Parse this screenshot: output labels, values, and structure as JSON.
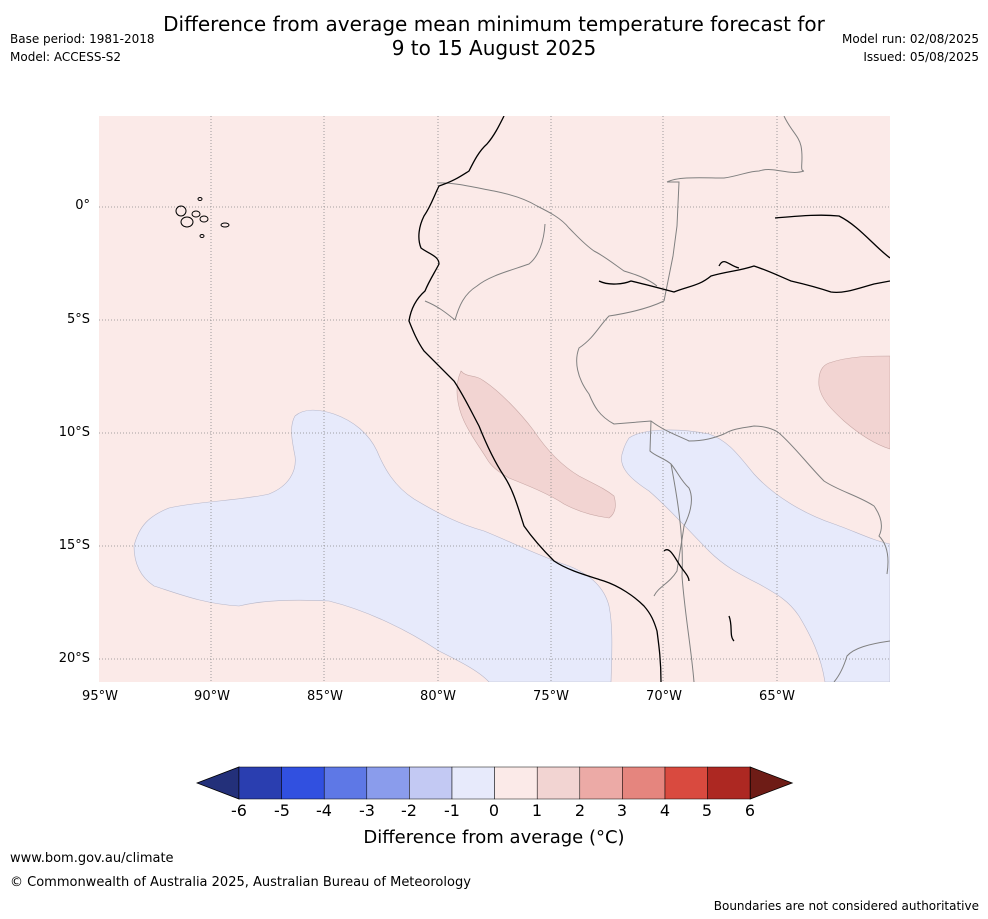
{
  "header": {
    "title_line1": "Difference from average mean minimum temperature forecast for",
    "title_line2": "9 to 15 August 2025",
    "base_period": "Base period: 1981-2018",
    "model": "Model: ACCESS-S2",
    "model_run": "Model run: 02/08/2025",
    "issued": "Issued: 05/08/2025"
  },
  "map": {
    "background_color": "#fbeae8",
    "lat_labels": [
      "0°",
      "5°S",
      "10°S",
      "15°S",
      "20°S"
    ],
    "lon_labels": [
      "95°W",
      "90°W",
      "85°W",
      "80°W",
      "75°W",
      "70°W",
      "65°W"
    ]
  },
  "colorbar": {
    "colors": [
      "#23307a",
      "#2a3eb0",
      "#3150e0",
      "#5e78e6",
      "#8a9cec",
      "#c3c9f3",
      "#e7eafb",
      "#fbeae8",
      "#f2d4d2",
      "#ecaaa6",
      "#e5857e",
      "#d94a3f",
      "#ad2822",
      "#6e1c16"
    ],
    "ticks": [
      "-6",
      "-5",
      "-4",
      "-3",
      "-2",
      "-1",
      "0",
      "1",
      "2",
      "3",
      "4",
      "5",
      "6"
    ],
    "label": "Difference from average (°C)"
  },
  "footer": {
    "url": "www.bom.gov.au/climate",
    "copyright": "© Commonwealth of Australia 2025, Australian Bureau of Meteorology",
    "disclaimer": "Boundaries are not considered authoritative"
  }
}
